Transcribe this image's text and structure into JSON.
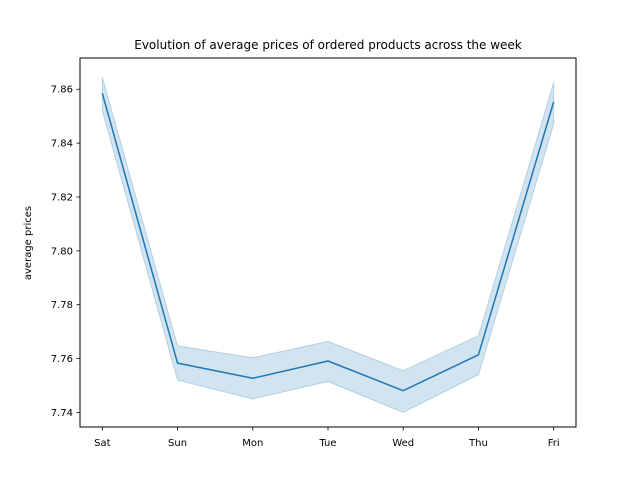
{
  "chart_data": {
    "type": "line",
    "title": "Evolution of average prices of ordered products across the week",
    "xlabel": "",
    "ylabel": "average prices",
    "categories": [
      "Sat",
      "Sun",
      "Mon",
      "Tue",
      "Wed",
      "Thu",
      "Fri"
    ],
    "series": [
      {
        "values": [
          7.8585,
          7.7583,
          7.7527,
          7.7591,
          7.7481,
          7.7614,
          7.8553
        ],
        "ci_lower": [
          7.852,
          7.752,
          7.745,
          7.7515,
          7.74,
          7.754,
          7.847
        ],
        "ci_upper": [
          7.8645,
          7.7647,
          7.7603,
          7.7664,
          7.7555,
          7.7685,
          7.8625
        ],
        "color": "#1f77b4",
        "band_color": "#1f77b4"
      }
    ],
    "ylim": [
      7.7346,
      7.8716
    ],
    "yticks": [
      7.74,
      7.76,
      7.78,
      7.8,
      7.82,
      7.84,
      7.86
    ],
    "ytick_labels": [
      "7.74",
      "7.76",
      "7.78",
      "7.80",
      "7.82",
      "7.84",
      "7.86"
    ],
    "grid": false,
    "legend": "none"
  }
}
